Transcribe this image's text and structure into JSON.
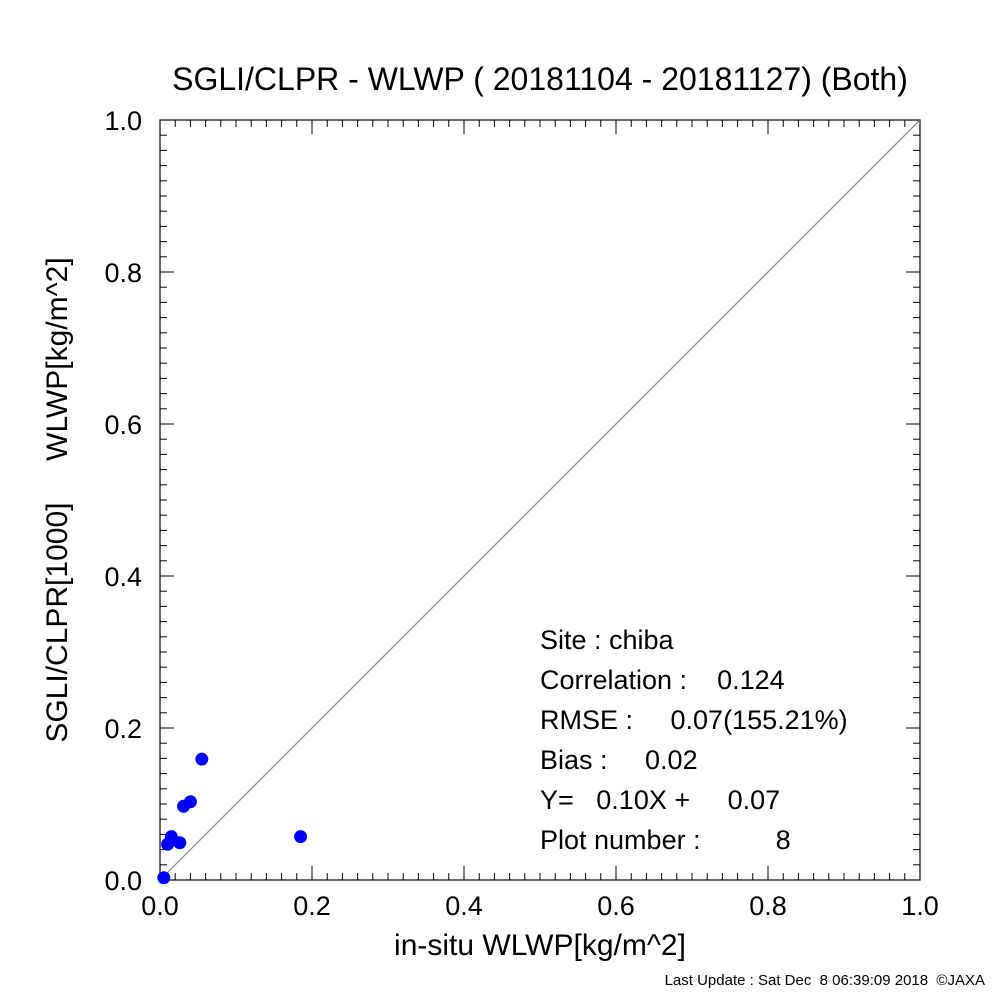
{
  "chart_data": {
    "type": "scatter",
    "title": "SGLI/CLPR - WLWP ( 20181104 - 20181127) (Both)",
    "xlabel": "in-situ WLWP[kg/m^2]",
    "ylabel": "SGLI/CLPR[1000]     WLWP[kg/m^2]",
    "xlim": [
      0.0,
      1.0
    ],
    "ylim": [
      0.0,
      1.0
    ],
    "x_ticks": [
      "0.0",
      "0.2",
      "0.4",
      "0.6",
      "0.8",
      "1.0"
    ],
    "y_ticks": [
      "0.0",
      "0.2",
      "0.4",
      "0.6",
      "0.8",
      "1.0"
    ],
    "grid": false,
    "reference_line": "1:1",
    "marker_color": "#0000ff",
    "points": [
      {
        "x": 0.005,
        "y": 0.003
      },
      {
        "x": 0.01,
        "y": 0.047
      },
      {
        "x": 0.015,
        "y": 0.057
      },
      {
        "x": 0.026,
        "y": 0.049
      },
      {
        "x": 0.031,
        "y": 0.097
      },
      {
        "x": 0.04,
        "y": 0.103
      },
      {
        "x": 0.055,
        "y": 0.159
      },
      {
        "x": 0.185,
        "y": 0.057
      }
    ]
  },
  "stats": [
    "Site : chiba",
    "Correlation :    0.124",
    "RMSE :     0.07(155.21%)",
    "Bias :     0.02",
    "Y=   0.10X +     0.07",
    "Plot number :          8"
  ],
  "footer": "Last Update : Sat Dec  8 06:39:09 2018  ©JAXA"
}
